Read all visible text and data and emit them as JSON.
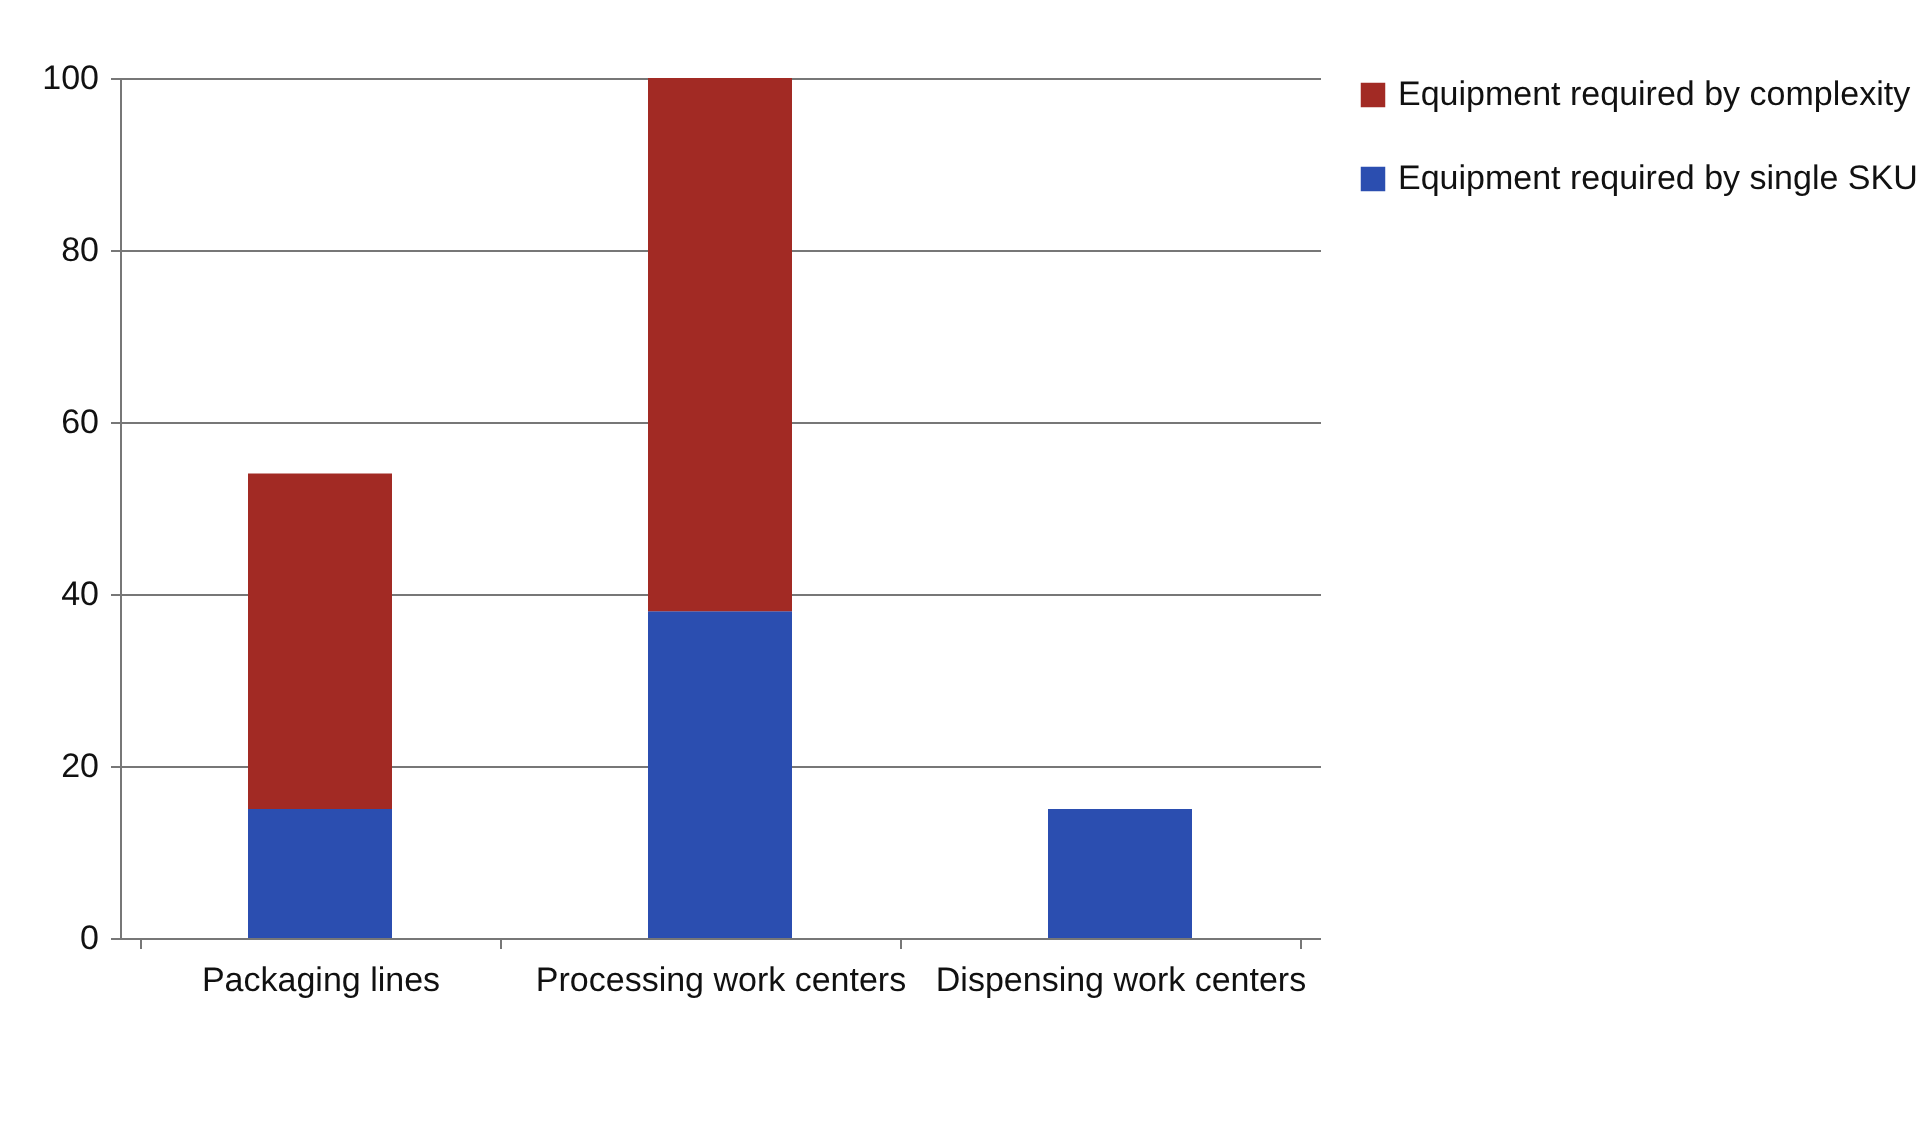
{
  "chart_data": {
    "type": "bar",
    "stacked": true,
    "categories": [
      "Packaging lines",
      "Processing work centers",
      "Dispensing work centers"
    ],
    "series": [
      {
        "name": "Equipment required by single SKU",
        "color": "#2b4eb0",
        "values": [
          15,
          38,
          15
        ]
      },
      {
        "name": "Equipment required by complexity",
        "color": "#a22a24",
        "values": [
          39,
          62,
          0
        ]
      }
    ],
    "ylim": [
      0,
      100
    ],
    "yticks": [
      0,
      20,
      40,
      60,
      80,
      100
    ],
    "grid": "y",
    "legend": "right"
  }
}
